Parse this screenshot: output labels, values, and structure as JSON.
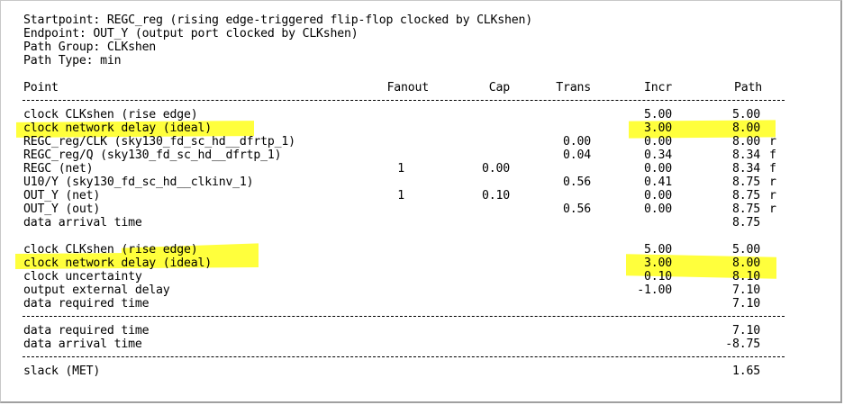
{
  "header": {
    "startpoint": "Startpoint: REGC_reg (rising edge-triggered flip-flop clocked by CLKshen)",
    "endpoint": "Endpoint: OUT_Y (output port clocked by CLKshen)",
    "path_group": "Path Group: CLKshen",
    "path_type": "Path Type: min"
  },
  "columns": {
    "point": "Point",
    "fanout": "Fanout",
    "cap": "Cap",
    "trans": "Trans",
    "incr": "Incr",
    "path": "Path"
  },
  "arrival": [
    {
      "point": "clock CLKshen (rise edge)",
      "fanout": "",
      "cap": "",
      "trans": "",
      "incr": "5.00",
      "path": "5.00",
      "edge": ""
    },
    {
      "point": "clock network delay (ideal)",
      "fanout": "",
      "cap": "",
      "trans": "",
      "incr": "3.00",
      "path": "8.00",
      "edge": ""
    },
    {
      "point": "REGC_reg/CLK (sky130_fd_sc_hd__dfrtp_1)",
      "fanout": "",
      "cap": "",
      "trans": "0.00",
      "incr": "0.00",
      "path": "8.00",
      "edge": "r"
    },
    {
      "point": "REGC_reg/Q (sky130_fd_sc_hd__dfrtp_1)",
      "fanout": "",
      "cap": "",
      "trans": "0.04",
      "incr": "0.34",
      "path": "8.34",
      "edge": "f"
    },
    {
      "point": "REGC (net)",
      "fanout": "1",
      "cap": "0.00",
      "trans": "",
      "incr": "0.00",
      "path": "8.34",
      "edge": "f"
    },
    {
      "point": "U10/Y (sky130_fd_sc_hd__clkinv_1)",
      "fanout": "",
      "cap": "",
      "trans": "0.56",
      "incr": "0.41",
      "path": "8.75",
      "edge": "r"
    },
    {
      "point": "OUT_Y (net)",
      "fanout": "1",
      "cap": "0.10",
      "trans": "",
      "incr": "0.00",
      "path": "8.75",
      "edge": "r"
    },
    {
      "point": "OUT_Y (out)",
      "fanout": "",
      "cap": "",
      "trans": "0.56",
      "incr": "0.00",
      "path": "8.75",
      "edge": "r"
    },
    {
      "point": "data arrival time",
      "fanout": "",
      "cap": "",
      "trans": "",
      "incr": "",
      "path": "8.75",
      "edge": ""
    }
  ],
  "required": [
    {
      "point": "clock CLKshen (rise edge)",
      "fanout": "",
      "cap": "",
      "trans": "",
      "incr": "5.00",
      "path": "5.00",
      "edge": ""
    },
    {
      "point": "clock network delay (ideal)",
      "fanout": "",
      "cap": "",
      "trans": "",
      "incr": "3.00",
      "path": "8.00",
      "edge": ""
    },
    {
      "point": "clock uncertainty",
      "fanout": "",
      "cap": "",
      "trans": "",
      "incr": "0.10",
      "path": "8.10",
      "edge": ""
    },
    {
      "point": "output external delay",
      "fanout": "",
      "cap": "",
      "trans": "",
      "incr": "-1.00",
      "path": "7.10",
      "edge": ""
    },
    {
      "point": "data required time",
      "fanout": "",
      "cap": "",
      "trans": "",
      "incr": "",
      "path": "7.10",
      "edge": ""
    }
  ],
  "summary": [
    {
      "point": "data required time",
      "path": "7.10"
    },
    {
      "point": "data arrival time",
      "path": "-8.75"
    }
  ],
  "slack": {
    "point": "slack (MET)",
    "path": "1.65"
  },
  "highlight_color": "#ffff3c"
}
